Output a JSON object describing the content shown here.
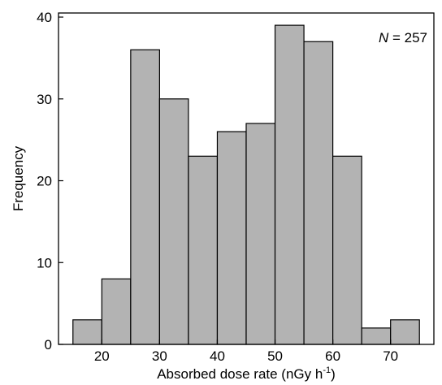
{
  "chart_data": {
    "type": "bar",
    "bin_edges": [
      15,
      20,
      25,
      30,
      35,
      40,
      45,
      50,
      55,
      60,
      65,
      70,
      75
    ],
    "values": [
      3,
      8,
      36,
      30,
      23,
      26,
      27,
      39,
      37,
      23,
      2,
      3
    ],
    "xlabel": "Absorbed dose rate (nGy h",
    "xlabel_sup": "-1",
    "xlabel_end": ")",
    "ylabel": "Frequency",
    "xlim": [
      12.5,
      77.5
    ],
    "ylim": [
      0,
      40.5
    ],
    "xticks": [
      20,
      30,
      40,
      50,
      60,
      70
    ],
    "yticks": [
      0,
      10,
      20,
      30,
      40
    ],
    "annotation": {
      "italic": "N",
      "text": " = 257"
    },
    "bar_color": "#b3b3b3",
    "edge_color": "#000000",
    "grid": false
  }
}
